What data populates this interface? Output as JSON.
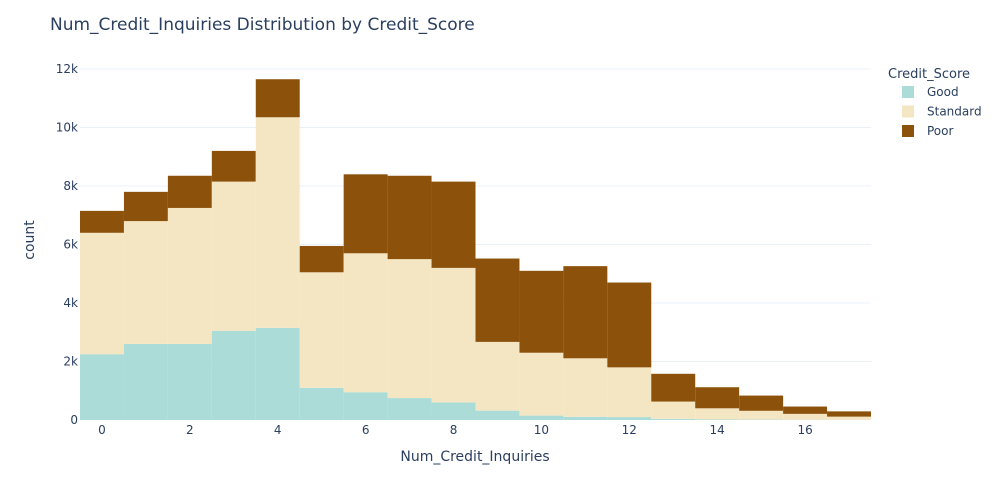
{
  "chart_data": {
    "type": "bar",
    "stacked": true,
    "title": "Num_Credit_Inquiries Distribution by Credit_Score",
    "xlabel": "Num_Credit_Inquiries",
    "ylabel": "count",
    "x": [
      0,
      1,
      2,
      3,
      4,
      5,
      6,
      7,
      8,
      9,
      10,
      11,
      12,
      13,
      14,
      15,
      16,
      17
    ],
    "xlim": [
      -0.5,
      17.5
    ],
    "ylim": [
      0,
      12000
    ],
    "xticks": [
      0,
      2,
      4,
      6,
      8,
      10,
      12,
      14,
      16
    ],
    "xtick_labels": [
      "0",
      "2",
      "4",
      "6",
      "8",
      "10",
      "12",
      "14",
      "16"
    ],
    "yticks": [
      0,
      2000,
      4000,
      6000,
      8000,
      10000,
      12000
    ],
    "ytick_labels": [
      "0",
      "2k",
      "4k",
      "6k",
      "8k",
      "10k",
      "12k"
    ],
    "grid": true,
    "legend": {
      "title": "Credit_Score",
      "position": "top-right"
    },
    "series": [
      {
        "name": "Good",
        "color": "#abdcd8",
        "values": [
          2250,
          2600,
          2600,
          3050,
          3150,
          1100,
          950,
          750,
          600,
          320,
          150,
          110,
          100,
          40,
          20,
          15,
          10,
          5
        ]
      },
      {
        "name": "Standard",
        "color": "#f5e6c3",
        "values": [
          4150,
          4200,
          4650,
          5100,
          7200,
          3950,
          4750,
          4750,
          4600,
          2350,
          2150,
          2000,
          1700,
          590,
          380,
          300,
          200,
          110
        ]
      },
      {
        "name": "Poor",
        "color": "#8c510a",
        "values": [
          750,
          1000,
          1100,
          1050,
          1300,
          900,
          2700,
          2850,
          2950,
          2850,
          2800,
          3150,
          2900,
          950,
          720,
          520,
          250,
          180
        ]
      }
    ]
  }
}
